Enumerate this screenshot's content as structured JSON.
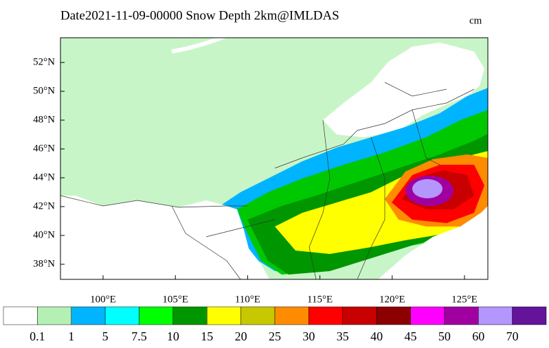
{
  "title": "Date2021-11-09-00000 Snow Depth 2km@IMLDAS",
  "unit": "cm",
  "lat_labels": [
    "52°N",
    "50°N",
    "48°N",
    "46°N",
    "44°N",
    "42°N",
    "40°N",
    "38°N"
  ],
  "lon_labels": [
    "100°E",
    "105°E",
    "110°E",
    "115°E",
    "120°E",
    "125°E"
  ],
  "colorbar": {
    "colors": [
      "#ffffff",
      "#b4f0b4",
      "#00b4ff",
      "#00ffff",
      "#00ff00",
      "#009600",
      "#ffff00",
      "#c8c800",
      "#ff8c00",
      "#ff0000",
      "#c80000",
      "#8c0000",
      "#ff00ff",
      "#a000a0",
      "#b496ff",
      "#64149b"
    ],
    "labels": [
      "0.1",
      "1",
      "5",
      "7.5",
      "10",
      "15",
      "20",
      "25",
      "30",
      "35",
      "40",
      "45",
      "50",
      "60",
      "70"
    ]
  }
}
